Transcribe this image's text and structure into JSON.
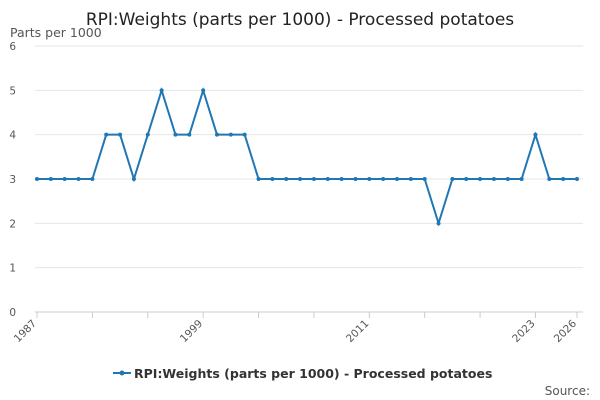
{
  "chart_data": {
    "type": "line",
    "title": "RPI:Weights (parts per 1000) - Processed potatoes",
    "ylabel": "Parts per 1000",
    "xlabel": "",
    "ylim": [
      0,
      6
    ],
    "yticks": [
      0,
      1,
      2,
      3,
      4,
      5,
      6
    ],
    "xlim": [
      1987,
      2026
    ],
    "xticks": [
      1987,
      1999,
      2011,
      2023,
      2026
    ],
    "grid": true,
    "legend_position": "bottom",
    "series": [
      {
        "name": "RPI:Weights (parts per 1000) - Processed potatoes",
        "color": "#1f77b4",
        "x": [
          1987,
          1988,
          1989,
          1990,
          1991,
          1992,
          1993,
          1994,
          1995,
          1996,
          1997,
          1998,
          1999,
          2000,
          2001,
          2002,
          2003,
          2004,
          2005,
          2006,
          2007,
          2008,
          2009,
          2010,
          2011,
          2012,
          2013,
          2014,
          2015,
          2016,
          2017,
          2018,
          2019,
          2020,
          2021,
          2022,
          2023,
          2024,
          2025,
          2026
        ],
        "values": [
          3,
          3,
          3,
          3,
          3,
          4,
          4,
          3,
          4,
          5,
          4,
          4,
          5,
          4,
          4,
          4,
          3,
          3,
          3,
          3,
          3,
          3,
          3,
          3,
          3,
          3,
          3,
          3,
          3,
          2,
          3,
          3,
          3,
          3,
          3,
          3,
          4,
          3,
          3,
          3
        ]
      }
    ]
  },
  "source_label": "Source:"
}
